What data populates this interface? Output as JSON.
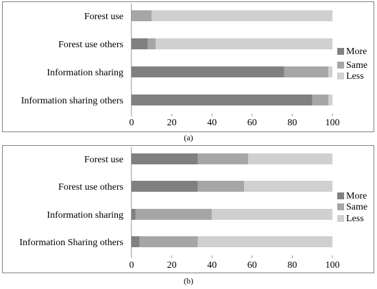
{
  "chart_data": [
    {
      "type": "bar",
      "orientation": "horizontal",
      "stacked": true,
      "caption": "(a)",
      "categories": [
        "Forest use",
        "Forest use others",
        "Information sharing",
        "Information sharing others"
      ],
      "series": [
        {
          "name": "More",
          "values": [
            0,
            8,
            76,
            90
          ],
          "color": "#808080"
        },
        {
          "name": "Same",
          "values": [
            10,
            4,
            22,
            8
          ],
          "color": "#a6a6a6"
        },
        {
          "name": "Less",
          "values": [
            90,
            88,
            2,
            2
          ],
          "color": "#d0d0d0"
        }
      ],
      "xlim": [
        0,
        100
      ],
      "xticks": [
        "0",
        "20",
        "40",
        "60",
        "80",
        "100"
      ],
      "legend": "right",
      "grid": false
    },
    {
      "type": "bar",
      "orientation": "horizontal",
      "stacked": true,
      "caption": "(b)",
      "categories": [
        "Forest use",
        "Forest use others",
        "Information sharing",
        "Information Sharing others"
      ],
      "series": [
        {
          "name": "More",
          "values": [
            33,
            33,
            2,
            4
          ],
          "color": "#808080"
        },
        {
          "name": "Same",
          "values": [
            25,
            23,
            38,
            29
          ],
          "color": "#a6a6a6"
        },
        {
          "name": "Less",
          "values": [
            42,
            44,
            60,
            67
          ],
          "color": "#d0d0d0"
        }
      ],
      "xlim": [
        0,
        100
      ],
      "xticks": [
        "0",
        "20",
        "40",
        "60",
        "80",
        "100"
      ],
      "legend": "right",
      "grid": false
    }
  ]
}
